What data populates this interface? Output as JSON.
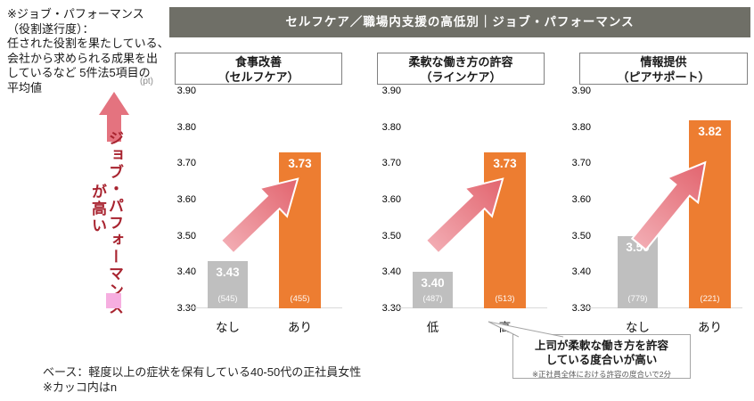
{
  "header": {
    "title": "セルフケア／職場内支援の高低別｜ジョブ・パフォーマンス"
  },
  "left_note": {
    "text": "※ジョブ・パフォーマンス\n（役割遂行度）：\n任された役割を果たしている、\n会社から求められる成果を出\nしているなど 5件法5項目の\n平均値"
  },
  "vertical_label": {
    "main": "ジョブ・パフォーマンス",
    "sub": "が高い"
  },
  "chart_data": [
    {
      "type": "bar",
      "title": "食事改善",
      "subtitle": "（セルフケア）",
      "unit": "(pt)",
      "categories": [
        "なし",
        "あり"
      ],
      "values": [
        3.43,
        3.73
      ],
      "value_labels": [
        "3.43",
        "3.73"
      ],
      "counts": [
        "(545)",
        "(455)"
      ],
      "ylim": [
        3.3,
        3.9
      ],
      "yticks": [
        "3.90",
        "3.80",
        "3.70",
        "3.60",
        "3.50",
        "3.40",
        "3.30"
      ],
      "grid": false,
      "legend": false
    },
    {
      "type": "bar",
      "title": "柔軟な働き方の許容",
      "subtitle": "（ラインケア）",
      "categories": [
        "低",
        "高"
      ],
      "values": [
        3.4,
        3.73
      ],
      "value_labels": [
        "3.40",
        "3.73"
      ],
      "counts": [
        "(487)",
        "(513)"
      ],
      "ylim": [
        3.3,
        3.9
      ],
      "yticks": [
        "3.90",
        "3.80",
        "3.70",
        "3.60",
        "3.50",
        "3.40",
        "3.30"
      ],
      "grid": false,
      "legend": false
    },
    {
      "type": "bar",
      "title": "情報提供",
      "subtitle": "（ピアサポート）",
      "categories": [
        "なし",
        "あり"
      ],
      "values": [
        3.5,
        3.82
      ],
      "value_labels": [
        "3.50",
        "3.82"
      ],
      "counts": [
        "(779)",
        "(221)"
      ],
      "ylim": [
        3.3,
        3.9
      ],
      "yticks": [
        "3.90",
        "3.80",
        "3.70",
        "3.60",
        "3.50",
        "3.40",
        "3.30"
      ],
      "grid": false,
      "legend": false
    }
  ],
  "callout": {
    "line1": "上司が柔軟な働き方を許容",
    "line2": "している度合いが高い",
    "note": "※正社員全体における許容の度合いで2分"
  },
  "footer": {
    "base": "ベース：軽度以上の症状を保有している40-50代の正社員女性",
    "note": "※カッコ内はn"
  },
  "colors": {
    "bar_low": "#BFBFBF",
    "bar_high": "#ED7D31",
    "arrow_pink": "#F2ABB2",
    "arrow_red": "#E2646E",
    "header_bg": "#6F6F67",
    "accent_text": "#A8232F",
    "pink_square": "#F6AEE0"
  }
}
